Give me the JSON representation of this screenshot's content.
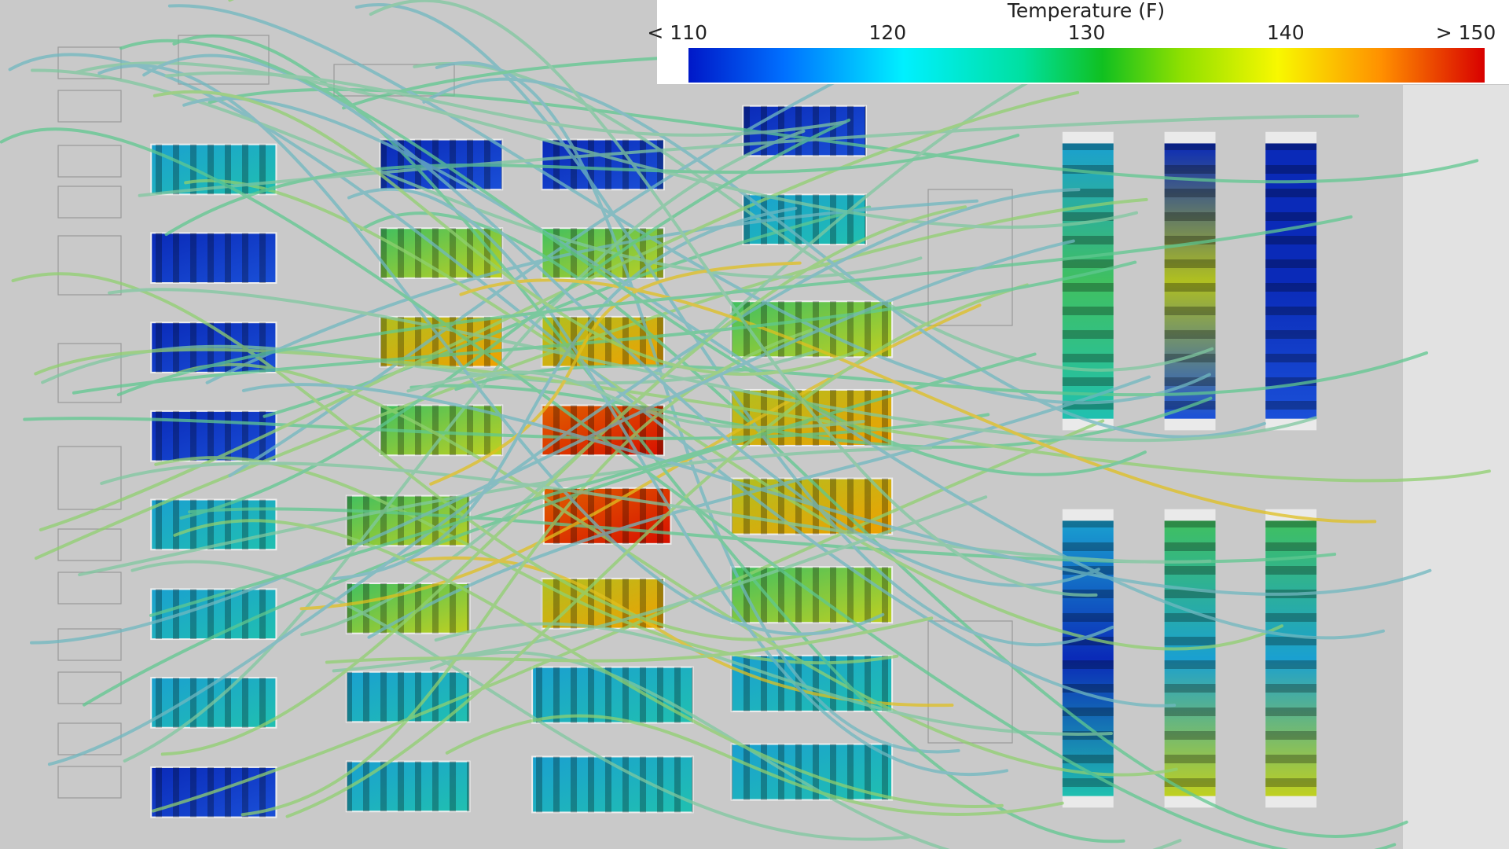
{
  "colorbar": {
    "title": "Temperature (F)",
    "range": [
      110,
      150
    ],
    "ticks": [
      {
        "value": 110,
        "label": "< 110"
      },
      120,
      130,
      140,
      {
        "value": 150,
        "label": "> 150"
      }
    ]
  }
}
